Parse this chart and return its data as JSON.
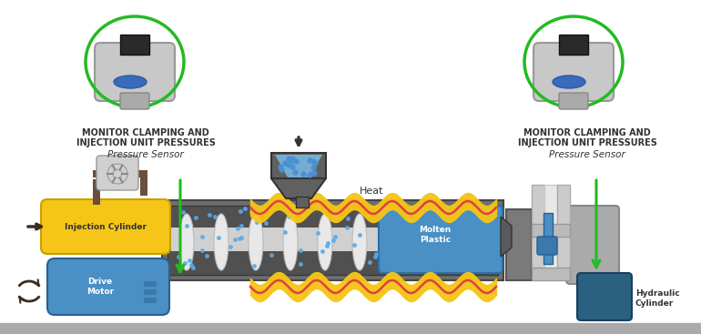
{
  "bg_color": "#ffffff",
  "green_circle_color": "#22bb22",
  "green_arrow_color": "#22bb22",
  "yellow_color": "#f5c518",
  "blue_color": "#4a90c4",
  "dark_blue_color": "#2a6080",
  "gray_color": "#8c8c8c",
  "dark_gray_color": "#555555",
  "brown_color": "#6b4f3a",
  "red_wave_color": "#e04040",
  "light_gray": "#cccccc",
  "dark_brown": "#3d2b1f",
  "text_color": "#333333",
  "label1_line1": "MONITOR CLAMPING AND",
  "label1_line2": "INJECTION UNIT PRESSURES",
  "label1_line3": "Pressure Sensor",
  "label2_line1": "MONITOR CLAMPING AND",
  "label2_line2": "INJECTION UNIT PRESSURES",
  "label2_line3": "Pressure Sensor",
  "injection_cylinder_text": "Injection Cylinder",
  "drive_motor_text": "Drive\nMotor",
  "molten_plastic_text": "Molten\nPlastic",
  "heat_text": "Heat",
  "hydraulic_cylinder_text": "Hydraulic\nCylinder"
}
